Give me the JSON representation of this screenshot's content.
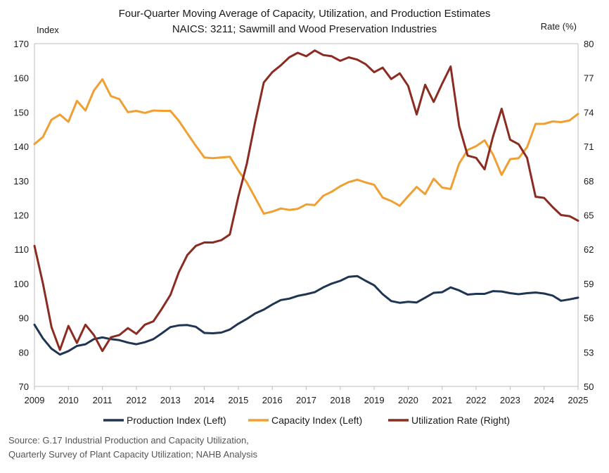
{
  "chart_data": {
    "type": "line",
    "title_line1": "Four-Quarter Moving Average of Capacity, Utilization, and Production Estimates",
    "title_line2": "NAICS: 3211; Sawmill and Wood Preservation Industries",
    "ylabel_left": "Index",
    "ylabel_right": "Rate (%)",
    "ylim_left": [
      70,
      170
    ],
    "ylim_right": [
      50,
      80
    ],
    "yticks_left": [
      70,
      80,
      90,
      100,
      110,
      120,
      130,
      140,
      150,
      160,
      170
    ],
    "yticks_right": [
      50,
      53,
      56,
      59,
      62,
      65,
      68,
      71,
      74,
      77,
      80
    ],
    "xlim": [
      2009,
      2025
    ],
    "xticks": [
      2009,
      2010,
      2011,
      2012,
      2013,
      2014,
      2015,
      2016,
      2017,
      2018,
      2019,
      2020,
      2021,
      2022,
      2023,
      2024,
      2025
    ],
    "grid": false,
    "legend_position": "bottom",
    "series": [
      {
        "name": "Production Index (Left)",
        "axis": "left",
        "color": "#1f3552",
        "x": [
          2009.0,
          2009.25,
          2009.5,
          2009.75,
          2010.0,
          2010.25,
          2010.5,
          2010.75,
          2011.0,
          2011.25,
          2011.5,
          2011.75,
          2012.0,
          2012.25,
          2012.5,
          2012.75,
          2013.0,
          2013.25,
          2013.5,
          2013.75,
          2014.0,
          2014.25,
          2014.5,
          2014.75,
          2015.0,
          2015.25,
          2015.5,
          2015.75,
          2016.0,
          2016.25,
          2016.5,
          2016.75,
          2017.0,
          2017.25,
          2017.5,
          2017.75,
          2018.0,
          2018.25,
          2018.5,
          2018.75,
          2019.0,
          2019.25,
          2019.5,
          2019.75,
          2020.0,
          2020.25,
          2020.5,
          2020.75,
          2021.0,
          2021.25,
          2021.5,
          2021.75,
          2022.0,
          2022.25,
          2022.5,
          2022.75,
          2023.0,
          2023.25,
          2023.5,
          2023.75,
          2024.0,
          2024.25,
          2024.5,
          2024.75,
          2025.0
        ],
        "values": [
          88,
          84,
          81,
          79.3,
          80.3,
          81.8,
          82.3,
          83.8,
          84.3,
          83.8,
          83.5,
          82.8,
          82.3,
          82.9,
          83.8,
          85.5,
          87.3,
          87.8,
          87.9,
          87.4,
          85.6,
          85.5,
          85.7,
          86.6,
          88.3,
          89.7,
          91.3,
          92.4,
          93.9,
          95.2,
          95.6,
          96.4,
          96.9,
          97.5,
          98.9,
          100.0,
          100.8,
          102.0,
          102.2,
          100.8,
          99.5,
          96.9,
          94.9,
          94.4,
          94.7,
          94.5,
          95.9,
          97.3,
          97.5,
          98.9,
          98.0,
          96.8,
          97.0,
          97.0,
          97.8,
          97.7,
          97.2,
          96.9,
          97.2,
          97.4,
          97.1,
          96.5,
          95.0,
          95.4,
          95.9
        ]
      },
      {
        "name": "Capacity Index (Left)",
        "axis": "left",
        "color": "#f0a033",
        "x": [
          2009.0,
          2009.25,
          2009.5,
          2009.75,
          2010.0,
          2010.25,
          2010.5,
          2010.75,
          2011.0,
          2011.25,
          2011.5,
          2011.75,
          2012.0,
          2012.25,
          2012.5,
          2012.75,
          2013.0,
          2013.25,
          2013.5,
          2013.75,
          2014.0,
          2014.25,
          2014.5,
          2014.75,
          2015.0,
          2015.25,
          2015.5,
          2015.75,
          2016.0,
          2016.25,
          2016.5,
          2016.75,
          2017.0,
          2017.25,
          2017.5,
          2017.75,
          2018.0,
          2018.25,
          2018.5,
          2018.75,
          2019.0,
          2019.25,
          2019.5,
          2019.75,
          2020.0,
          2020.25,
          2020.5,
          2020.75,
          2021.0,
          2021.25,
          2021.5,
          2021.75,
          2022.0,
          2022.25,
          2022.5,
          2022.75,
          2023.0,
          2023.25,
          2023.5,
          2023.75,
          2024.0,
          2024.25,
          2024.5,
          2024.75,
          2025.0
        ],
        "values": [
          140.7,
          142.8,
          147.8,
          149.3,
          147.2,
          153.3,
          150.5,
          156.3,
          159.6,
          154.7,
          153.8,
          150.0,
          150.4,
          149.8,
          150.5,
          150.4,
          150.4,
          147.5,
          143.8,
          140.2,
          136.8,
          136.6,
          136.8,
          137.0,
          133.0,
          129.5,
          125.0,
          120.4,
          121.0,
          121.9,
          121.5,
          121.8,
          123.1,
          122.9,
          125.6,
          126.8,
          128.4,
          129.6,
          130.3,
          129.5,
          128.8,
          125.1,
          124.1,
          122.7,
          125.5,
          128.2,
          126.1,
          130.6,
          128.0,
          127.6,
          135.0,
          139.0,
          140.1,
          141.8,
          137.6,
          131.7,
          136.3,
          136.6,
          139.8,
          146.6,
          146.6,
          147.3,
          147.1,
          147.6,
          149.5
        ]
      },
      {
        "name": "Utilization Rate (Right)",
        "axis": "right",
        "color": "#8b2c22",
        "x": [
          2009.0,
          2009.25,
          2009.5,
          2009.75,
          2010.0,
          2010.25,
          2010.5,
          2010.75,
          2011.0,
          2011.25,
          2011.5,
          2011.75,
          2012.0,
          2012.25,
          2012.5,
          2012.75,
          2013.0,
          2013.25,
          2013.5,
          2013.75,
          2014.0,
          2014.25,
          2014.5,
          2014.75,
          2015.0,
          2015.25,
          2015.5,
          2015.75,
          2016.0,
          2016.25,
          2016.5,
          2016.75,
          2017.0,
          2017.25,
          2017.5,
          2017.75,
          2018.0,
          2018.25,
          2018.5,
          2018.75,
          2019.0,
          2019.25,
          2019.5,
          2019.75,
          2020.0,
          2020.25,
          2020.5,
          2020.75,
          2021.0,
          2021.25,
          2021.5,
          2021.75,
          2022.0,
          2022.25,
          2022.5,
          2022.75,
          2023.0,
          2023.25,
          2023.5,
          2023.75,
          2024.0,
          2024.25,
          2024.5,
          2024.75,
          2025.0
        ],
        "values": [
          62.3,
          59.0,
          55.2,
          53.2,
          55.3,
          53.8,
          55.4,
          54.5,
          53.1,
          54.3,
          54.5,
          55.1,
          54.6,
          55.4,
          55.7,
          56.8,
          58.0,
          60.0,
          61.5,
          62.3,
          62.6,
          62.6,
          62.8,
          63.3,
          66.6,
          69.5,
          73.2,
          76.6,
          77.5,
          78.1,
          78.8,
          79.2,
          78.9,
          79.4,
          79.0,
          78.9,
          78.5,
          78.8,
          78.6,
          78.2,
          77.5,
          77.9,
          76.9,
          77.4,
          76.3,
          73.8,
          76.4,
          74.9,
          76.5,
          78.0,
          72.8,
          70.2,
          70.0,
          69.0,
          71.9,
          74.3,
          71.6,
          71.2,
          70.0,
          66.6,
          66.5,
          65.7,
          65.0,
          64.9,
          64.5
        ]
      }
    ]
  },
  "source_line1": "Source: G.17 Industrial Production and Capacity Utilization,",
  "source_line2": "Quarterly Survey of Plant Capacity Utilization; NAHB Analysis"
}
